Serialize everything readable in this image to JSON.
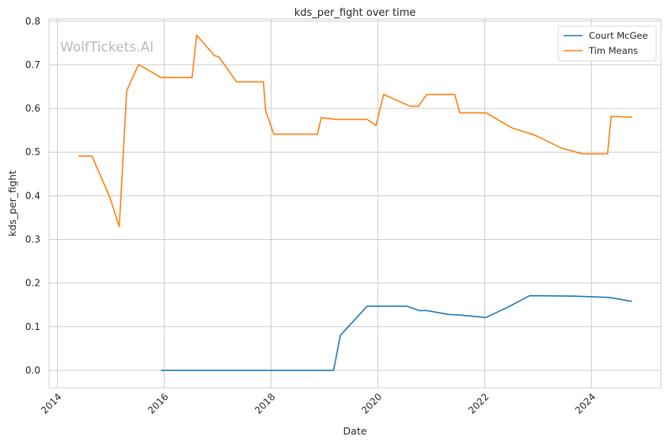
{
  "watermark": "WolfTickets.AI",
  "colors": {
    "grid": "#cccccc",
    "frame": "#cccccc",
    "text": "#262626"
  },
  "chart_data": {
    "type": "line",
    "title": "kds_per_fight over time",
    "xlabel": "Date",
    "ylabel": "kds_per_fight",
    "xlim": [
      "2013-11-05",
      "2025-04-20"
    ],
    "ylim": [
      -0.04,
      0.805
    ],
    "grid": true,
    "legend_position": "top-right",
    "x_ticks": [
      "2014",
      "2016",
      "2018",
      "2020",
      "2022",
      "2024"
    ],
    "y_ticks": [
      "0.0",
      "0.1",
      "0.2",
      "0.3",
      "0.4",
      "0.5",
      "0.6",
      "0.7",
      "0.8"
    ],
    "series": [
      {
        "name": "Court McGee",
        "color": "#1f77b4",
        "points": [
          [
            "2015-12-10",
            0.0
          ],
          [
            "2019-03-05",
            0.0
          ],
          [
            "2019-04-20",
            0.08
          ],
          [
            "2019-10-20",
            0.147
          ],
          [
            "2020-07-20",
            0.147
          ],
          [
            "2020-10-10",
            0.137
          ],
          [
            "2020-12-01",
            0.137
          ],
          [
            "2021-05-05",
            0.128
          ],
          [
            "2021-07-10",
            0.127
          ],
          [
            "2022-01-10",
            0.121
          ],
          [
            "2022-06-10",
            0.145
          ],
          [
            "2022-11-05",
            0.171
          ],
          [
            "2023-09-10",
            0.17
          ],
          [
            "2024-05-01",
            0.167
          ],
          [
            "2024-10-05",
            0.158
          ]
        ]
      },
      {
        "name": "Tim Means",
        "color": "#ff7f0e",
        "points": [
          [
            "2014-05-25",
            0.491
          ],
          [
            "2014-08-25",
            0.491
          ],
          [
            "2014-12-25",
            0.397
          ],
          [
            "2015-02-28",
            0.329
          ],
          [
            "2015-04-20",
            0.641
          ],
          [
            "2015-07-10",
            0.701
          ],
          [
            "2015-12-10",
            0.671
          ],
          [
            "2016-07-10",
            0.671
          ],
          [
            "2016-08-10",
            0.768
          ],
          [
            "2016-12-10",
            0.721
          ],
          [
            "2017-01-10",
            0.718
          ],
          [
            "2017-05-10",
            0.661
          ],
          [
            "2017-11-10",
            0.661
          ],
          [
            "2017-11-25",
            0.595
          ],
          [
            "2018-01-20",
            0.541
          ],
          [
            "2018-11-15",
            0.541
          ],
          [
            "2018-12-10",
            0.579
          ],
          [
            "2019-03-15",
            0.575
          ],
          [
            "2019-10-20",
            0.575
          ],
          [
            "2019-12-20",
            0.561
          ],
          [
            "2020-02-10",
            0.632
          ],
          [
            "2020-08-10",
            0.605
          ],
          [
            "2020-10-05",
            0.605
          ],
          [
            "2020-12-01",
            0.632
          ],
          [
            "2021-06-10",
            0.632
          ],
          [
            "2021-07-15",
            0.59
          ],
          [
            "2022-01-10",
            0.59
          ],
          [
            "2022-07-10",
            0.555
          ],
          [
            "2022-12-10",
            0.539
          ],
          [
            "2023-06-10",
            0.509
          ],
          [
            "2023-11-01",
            0.496
          ],
          [
            "2024-04-20",
            0.496
          ],
          [
            "2024-05-15",
            0.582
          ],
          [
            "2024-10-05",
            0.58
          ]
        ]
      }
    ]
  }
}
